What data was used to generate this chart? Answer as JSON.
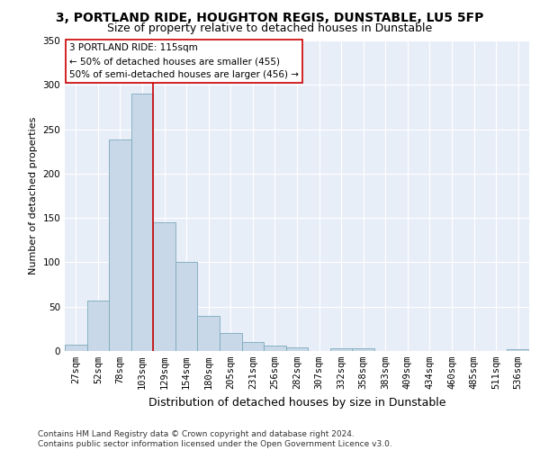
{
  "title": "3, PORTLAND RIDE, HOUGHTON REGIS, DUNSTABLE, LU5 5FP",
  "subtitle": "Size of property relative to detached houses in Dunstable",
  "xlabel": "Distribution of detached houses by size in Dunstable",
  "ylabel": "Number of detached properties",
  "bar_color": "#c8d8e8",
  "bar_edge_color": "#7aaabb",
  "bg_color": "#e8eef8",
  "grid_color": "#ffffff",
  "bins": [
    "27sqm",
    "52sqm",
    "78sqm",
    "103sqm",
    "129sqm",
    "154sqm",
    "180sqm",
    "205sqm",
    "231sqm",
    "256sqm",
    "282sqm",
    "307sqm",
    "332sqm",
    "358sqm",
    "383sqm",
    "409sqm",
    "434sqm",
    "460sqm",
    "485sqm",
    "511sqm",
    "536sqm"
  ],
  "values": [
    7,
    57,
    238,
    290,
    145,
    100,
    40,
    20,
    10,
    6,
    4,
    0,
    3,
    3,
    0,
    0,
    0,
    0,
    0,
    0,
    2
  ],
  "red_line_x": 3.5,
  "annotation_text": "3 PORTLAND RIDE: 115sqm\n← 50% of detached houses are smaller (455)\n50% of semi-detached houses are larger (456) →",
  "annotation_box_color": "#ffffff",
  "annotation_box_edge": "#cc0000",
  "red_line_color": "#cc0000",
  "ylim": [
    0,
    350
  ],
  "yticks": [
    0,
    50,
    100,
    150,
    200,
    250,
    300,
    350
  ],
  "footer": "Contains HM Land Registry data © Crown copyright and database right 2024.\nContains public sector information licensed under the Open Government Licence v3.0.",
  "title_fontsize": 10,
  "subtitle_fontsize": 9,
  "xlabel_fontsize": 9,
  "ylabel_fontsize": 8,
  "tick_fontsize": 7.5,
  "annotation_fontsize": 7.5,
  "footer_fontsize": 6.5
}
